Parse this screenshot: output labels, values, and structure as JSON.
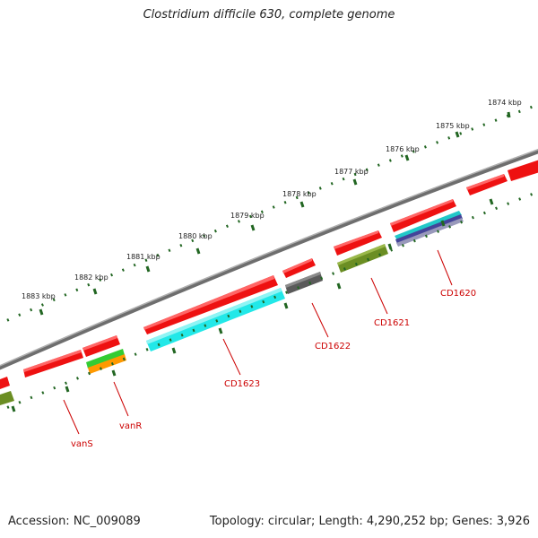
{
  "title": "Clostridium difficile 630, complete genome",
  "footer": {
    "accession": "Accession: NC_009089",
    "info": "Topology: circular; Length: 4,290,252 bp; Genes: 3,926"
  },
  "kbp_labels": [
    "1874 kbp",
    "1875 kbp",
    "1876 kbp",
    "1877 kbp",
    "1878 kbp",
    "1879 kbp",
    "1880 kbp",
    "1881 kbp",
    "1882 kbp",
    "1883 kbp"
  ],
  "gene_labels": [
    "CD1620",
    "CD1621",
    "CD1622",
    "CD1623",
    "vanR",
    "vanS"
  ],
  "colors": {
    "backbone": "#777777",
    "cds": "#ee1111",
    "tick": "#226622",
    "label": "#cc0000",
    "cyan": "#22e8e8",
    "olive": "#6b8e23",
    "gray": "#5a5a5a",
    "green": "#33cc33",
    "orange": "#ff9900",
    "navy": "#444499"
  }
}
